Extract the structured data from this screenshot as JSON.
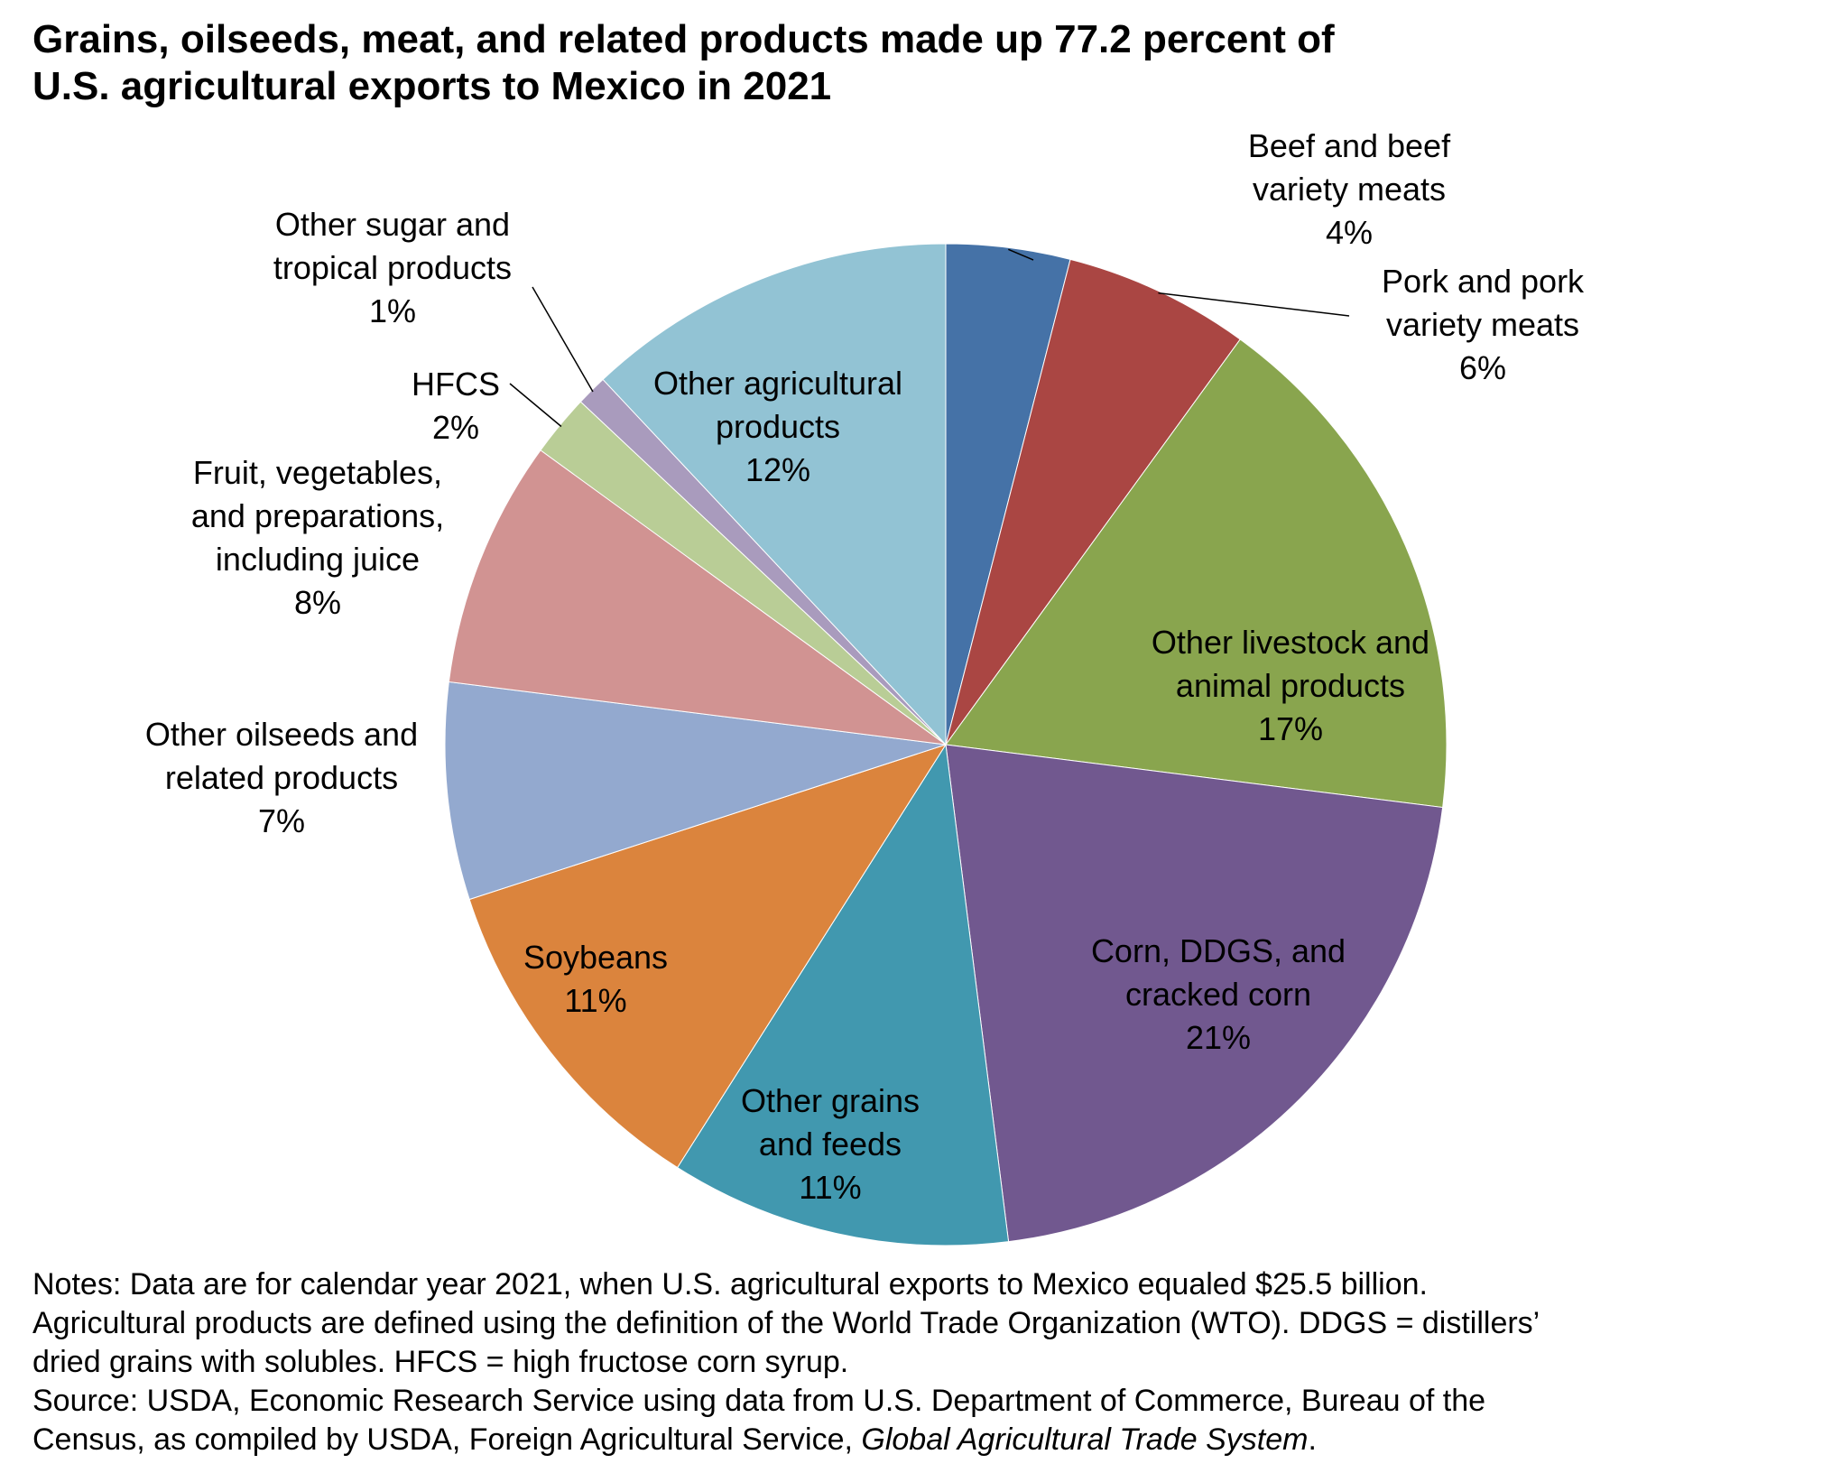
{
  "title_line1": "Grains, oilseeds, meat, and related products made up 77.2 percent of",
  "title_line2": "U.S. agricultural exports to Mexico in 2021",
  "chart_data": {
    "type": "pie",
    "unit": "%",
    "start": "12 o'clock, clockwise",
    "slices": [
      {
        "label": [
          "Beef and beef",
          "variety meats"
        ],
        "value": 4,
        "pct": "4%",
        "color": "#4572a7",
        "label_inside": false
      },
      {
        "label": [
          "Pork and pork",
          "variety meats"
        ],
        "value": 6,
        "pct": "6%",
        "color": "#aa4643",
        "label_inside": false
      },
      {
        "label": [
          "Other livestock and",
          "animal products"
        ],
        "value": 17,
        "pct": "17%",
        "color": "#89a54e",
        "label_inside": true
      },
      {
        "label": [
          "Corn, DDGS, and",
          "cracked corn"
        ],
        "value": 21,
        "pct": "21%",
        "color": "#71588f",
        "label_inside": true
      },
      {
        "label": [
          "Other grains",
          "and feeds"
        ],
        "value": 11,
        "pct": "11%",
        "color": "#4198af",
        "label_inside": true
      },
      {
        "label": [
          "Soybeans"
        ],
        "value": 11,
        "pct": "11%",
        "color": "#db843d",
        "label_inside": true
      },
      {
        "label": [
          "Other oilseeds and",
          "related products"
        ],
        "value": 7,
        "pct": "7%",
        "color": "#93a9cf",
        "label_inside": false
      },
      {
        "label": [
          "Fruit, vegetables,",
          "and preparations,",
          "including juice"
        ],
        "value": 8,
        "pct": "8%",
        "color": "#d19392",
        "label_inside": false
      },
      {
        "label": [
          "HFCS"
        ],
        "value": 2,
        "pct": "2%",
        "color": "#b9cd96",
        "label_inside": false
      },
      {
        "label": [
          "Other sugar and",
          "tropical products"
        ],
        "value": 1,
        "pct": "1%",
        "color": "#a99bbd",
        "label_inside": false
      },
      {
        "label": [
          "Other agricultural",
          "products"
        ],
        "value": 12,
        "pct": "12%",
        "color": "#92c3d4",
        "label_inside": true
      }
    ]
  },
  "notes": [
    "Notes: Data are for calendar year 2021, when U.S. agricultural exports to Mexico equaled $25.5 billion.",
    "Agricultural products are defined using the definition of the World Trade Organization (WTO). DDGS = distillers’",
    "dried grains with solubles. HFCS = high fructose corn syrup.",
    "Source: USDA, Economic Research Service using data from U.S. Department of Commerce, Bureau of the"
  ],
  "source_last_plain": "Census, as compiled by USDA, Foreign Agricultural Service, ",
  "source_last_italic": "Global Agricultural Trade System",
  "source_last_end": "."
}
